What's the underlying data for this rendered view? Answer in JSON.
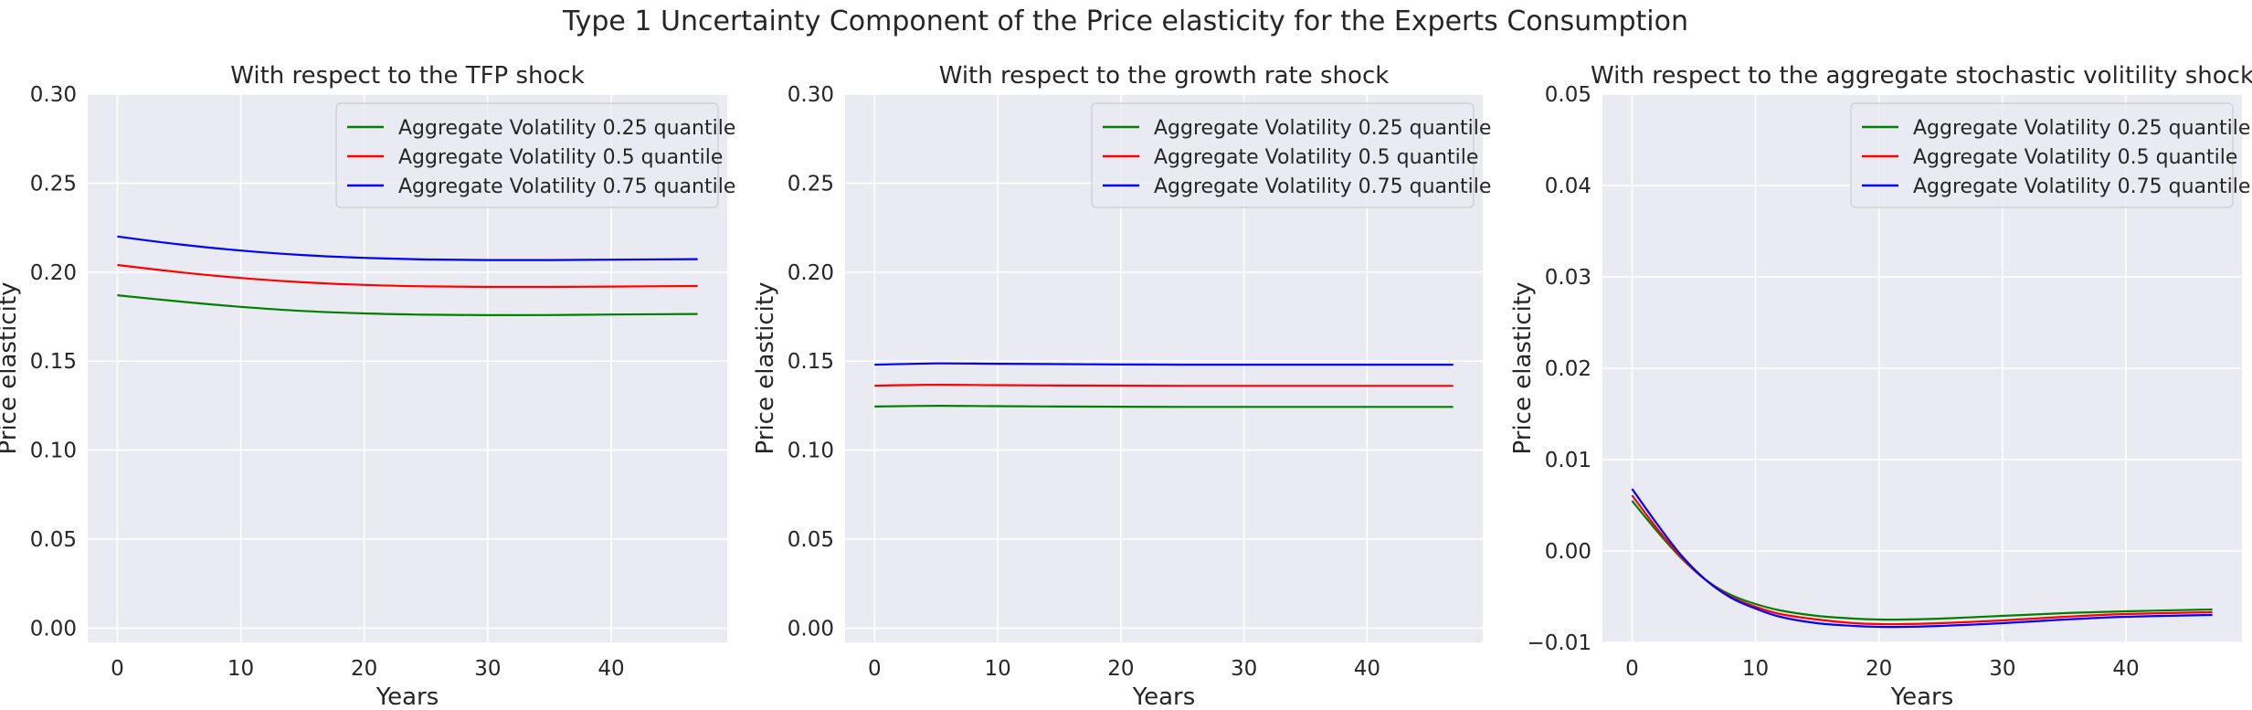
{
  "figure": {
    "suptitle": "Type 1 Uncertainty Component of the Price elasticity for the Experts Consumption"
  },
  "colors": {
    "background": "#eaeaf2",
    "grid": "#ffffff",
    "series": [
      "#008000",
      "#ff0000",
      "#0000ff"
    ]
  },
  "chart_data": [
    {
      "type": "line",
      "title": "With respect to the TFP shock",
      "xlabel": "Years",
      "ylabel": "Price elasticity",
      "xlim": [
        -2.4,
        49.4
      ],
      "ylim": [
        -0.008,
        0.3
      ],
      "xticks": [
        0,
        10,
        20,
        30,
        40
      ],
      "xtick_labels": [
        "0",
        "10",
        "20",
        "30",
        "40"
      ],
      "yticks": [
        0,
        0.05,
        0.1,
        0.15,
        0.2,
        0.25,
        0.3
      ],
      "ytick_labels": [
        "0.00",
        "0.05",
        "0.10",
        "0.15",
        "0.20",
        "0.25",
        "0.30"
      ],
      "grid": true,
      "legend_position": "top-right",
      "x": [
        0,
        5,
        10,
        15,
        20,
        25,
        30,
        35,
        40,
        47
      ],
      "series": [
        {
          "name": "Aggregate Volatility 0.25 quantile",
          "color": "#008000",
          "values": [
            0.187,
            0.1835,
            0.1805,
            0.1782,
            0.1768,
            0.1761,
            0.1758,
            0.1759,
            0.1762,
            0.1765
          ]
        },
        {
          "name": "Aggregate Volatility 0.5 quantile",
          "color": "#ff0000",
          "values": [
            0.204,
            0.2,
            0.1967,
            0.1943,
            0.1928,
            0.192,
            0.1917,
            0.1917,
            0.1919,
            0.1922
          ]
        },
        {
          "name": "Aggregate Volatility 0.75 quantile",
          "color": "#0000ff",
          "values": [
            0.22,
            0.2156,
            0.2121,
            0.2096,
            0.208,
            0.2071,
            0.2068,
            0.2068,
            0.207,
            0.2073
          ]
        }
      ]
    },
    {
      "type": "line",
      "title": "With respect to the growth rate shock",
      "xlabel": "Years",
      "ylabel": "Price elasticity",
      "xlim": [
        -2.4,
        49.4
      ],
      "ylim": [
        -0.008,
        0.3
      ],
      "xticks": [
        0,
        10,
        20,
        30,
        40
      ],
      "xtick_labels": [
        "0",
        "10",
        "20",
        "30",
        "40"
      ],
      "yticks": [
        0,
        0.05,
        0.1,
        0.15,
        0.2,
        0.25,
        0.3
      ],
      "ytick_labels": [
        "0.00",
        "0.05",
        "0.10",
        "0.15",
        "0.20",
        "0.25",
        "0.30"
      ],
      "grid": true,
      "legend_position": "top-right",
      "x": [
        0,
        5,
        10,
        15,
        20,
        25,
        30,
        35,
        40,
        47
      ],
      "series": [
        {
          "name": "Aggregate Volatility 0.25 quantile",
          "color": "#008000",
          "values": [
            0.1245,
            0.1249,
            0.1247,
            0.1245,
            0.1244,
            0.1243,
            0.1243,
            0.1243,
            0.1243,
            0.1243
          ]
        },
        {
          "name": "Aggregate Volatility 0.5 quantile",
          "color": "#ff0000",
          "values": [
            0.1362,
            0.1367,
            0.1365,
            0.1363,
            0.1362,
            0.1361,
            0.1361,
            0.1361,
            0.1361,
            0.1361
          ]
        },
        {
          "name": "Aggregate Volatility 0.75 quantile",
          "color": "#0000ff",
          "values": [
            0.148,
            0.1487,
            0.1485,
            0.1483,
            0.1481,
            0.148,
            0.148,
            0.148,
            0.148,
            0.148
          ]
        }
      ]
    },
    {
      "type": "line",
      "title": "With respect to the aggregate stochastic volitility shock",
      "xlabel": "Years",
      "ylabel": "Price elasticity",
      "xlim": [
        -2.4,
        49.4
      ],
      "ylim": [
        -0.01,
        0.05
      ],
      "xticks": [
        0,
        10,
        20,
        30,
        40
      ],
      "xtick_labels": [
        "0",
        "10",
        "20",
        "30",
        "40"
      ],
      "yticks": [
        -0.01,
        0,
        0.01,
        0.02,
        0.03,
        0.04,
        0.05
      ],
      "ytick_labels": [
        "−0.01",
        "0.00",
        "0.01",
        "0.02",
        "0.03",
        "0.04",
        "0.05"
      ],
      "grid": true,
      "legend_position": "top-right",
      "x": [
        0,
        2,
        4,
        6,
        8,
        10,
        12,
        15,
        18,
        20,
        22,
        25,
        30,
        35,
        40,
        47
      ],
      "series": [
        {
          "name": "Aggregate Volatility 0.25 quantile",
          "color": "#008000",
          "values": [
            0.0055,
            0.0022,
            -0.0008,
            -0.0032,
            -0.0048,
            -0.0058,
            -0.0065,
            -0.0071,
            -0.0074,
            -0.0075,
            -0.0075,
            -0.0074,
            -0.0071,
            -0.0068,
            -0.0066,
            -0.0064
          ]
        },
        {
          "name": "Aggregate Volatility 0.5 quantile",
          "color": "#ff0000",
          "values": [
            0.0061,
            0.0025,
            -0.0007,
            -0.0032,
            -0.005,
            -0.0061,
            -0.0069,
            -0.0075,
            -0.0079,
            -0.008,
            -0.008,
            -0.0079,
            -0.0076,
            -0.0072,
            -0.0069,
            -0.0067
          ]
        },
        {
          "name": "Aggregate Volatility 0.75 quantile",
          "color": "#0000ff",
          "values": [
            0.0068,
            0.003,
            -0.0005,
            -0.0032,
            -0.0051,
            -0.0063,
            -0.0072,
            -0.0079,
            -0.0082,
            -0.0083,
            -0.0083,
            -0.0082,
            -0.0079,
            -0.0075,
            -0.0072,
            -0.007
          ]
        }
      ]
    }
  ]
}
